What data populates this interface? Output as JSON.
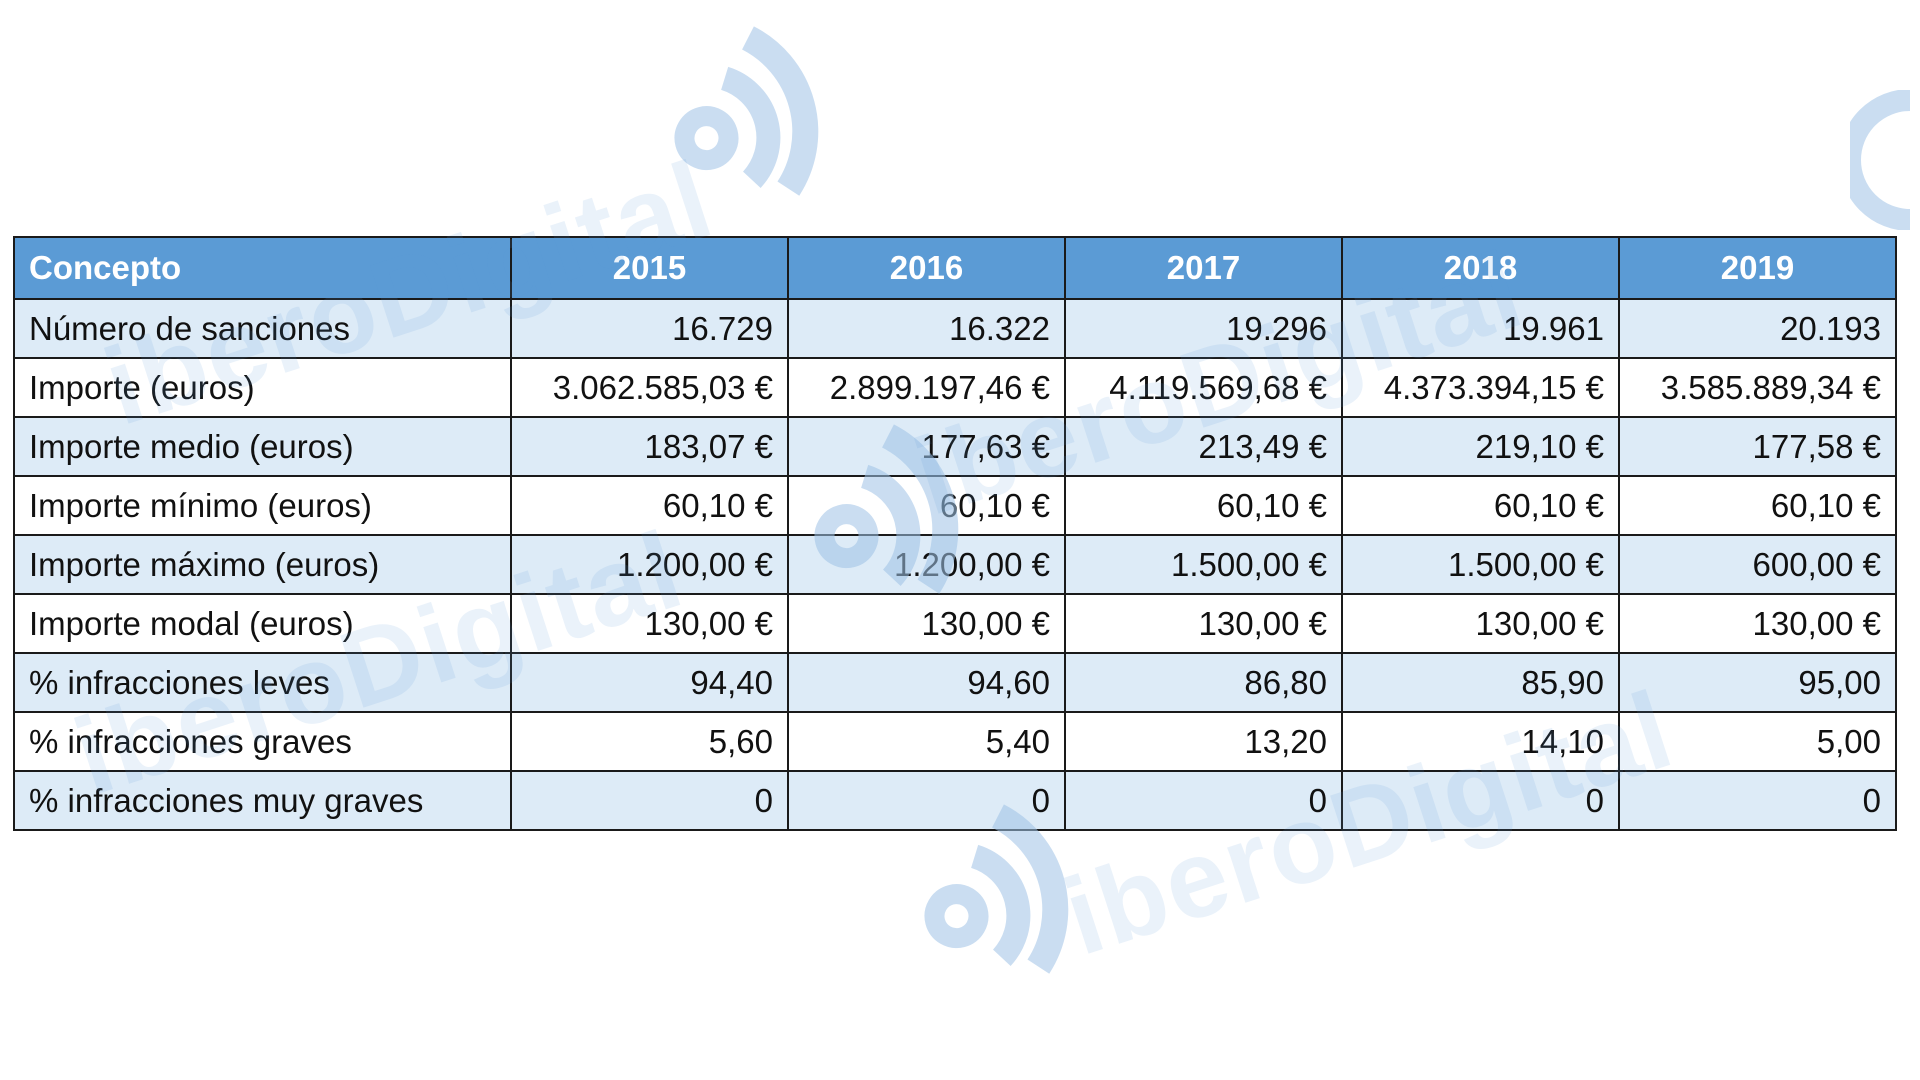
{
  "watermark": {
    "brand_text": "iberoDigital",
    "logo_icon": "radio-waves-logo-icon",
    "color": "#5b9bd5"
  },
  "table": {
    "header": {
      "concept": "Concepto",
      "years": [
        "2015",
        "2016",
        "2017",
        "2018",
        "2019"
      ]
    },
    "rows": [
      {
        "label": "Número de sanciones",
        "values": [
          "16.729",
          "16.322",
          "19.296",
          "19.961",
          "20.193"
        ]
      },
      {
        "label": "Importe (euros)",
        "values": [
          "3.062.585,03 €",
          "2.899.197,46 €",
          "4.119.569,68 €",
          "4.373.394,15 €",
          "3.585.889,34 €"
        ]
      },
      {
        "label": "Importe medio (euros)",
        "values": [
          "183,07 €",
          "177,63 €",
          "213,49 €",
          "219,10 €",
          "177,58 €"
        ]
      },
      {
        "label": "Importe mínimo (euros)",
        "values": [
          "60,10 €",
          "60,10 €",
          "60,10 €",
          "60,10 €",
          "60,10 €"
        ]
      },
      {
        "label": "Importe máximo (euros)",
        "values": [
          "1.200,00 €",
          "1.200,00 €",
          "1.500,00 €",
          "1.500,00 €",
          "600,00 €"
        ]
      },
      {
        "label": "Importe modal (euros)",
        "values": [
          "130,00 €",
          "130,00 €",
          "130,00 €",
          "130,00 €",
          "130,00 €"
        ]
      },
      {
        "label": "% infracciones leves",
        "values": [
          "94,40",
          "94,60",
          "86,80",
          "85,90",
          "95,00"
        ]
      },
      {
        "label": "% infracciones graves",
        "values": [
          "5,60",
          "5,40",
          "13,20",
          "14,10",
          "5,00"
        ]
      },
      {
        "label": "% infracciones muy graves",
        "values": [
          "0",
          "0",
          "0",
          "0",
          "0"
        ]
      }
    ],
    "colors": {
      "header_bg": "#5b9bd5",
      "stripe_bg": "#ddebf7",
      "border": "#1a1a1a"
    }
  }
}
